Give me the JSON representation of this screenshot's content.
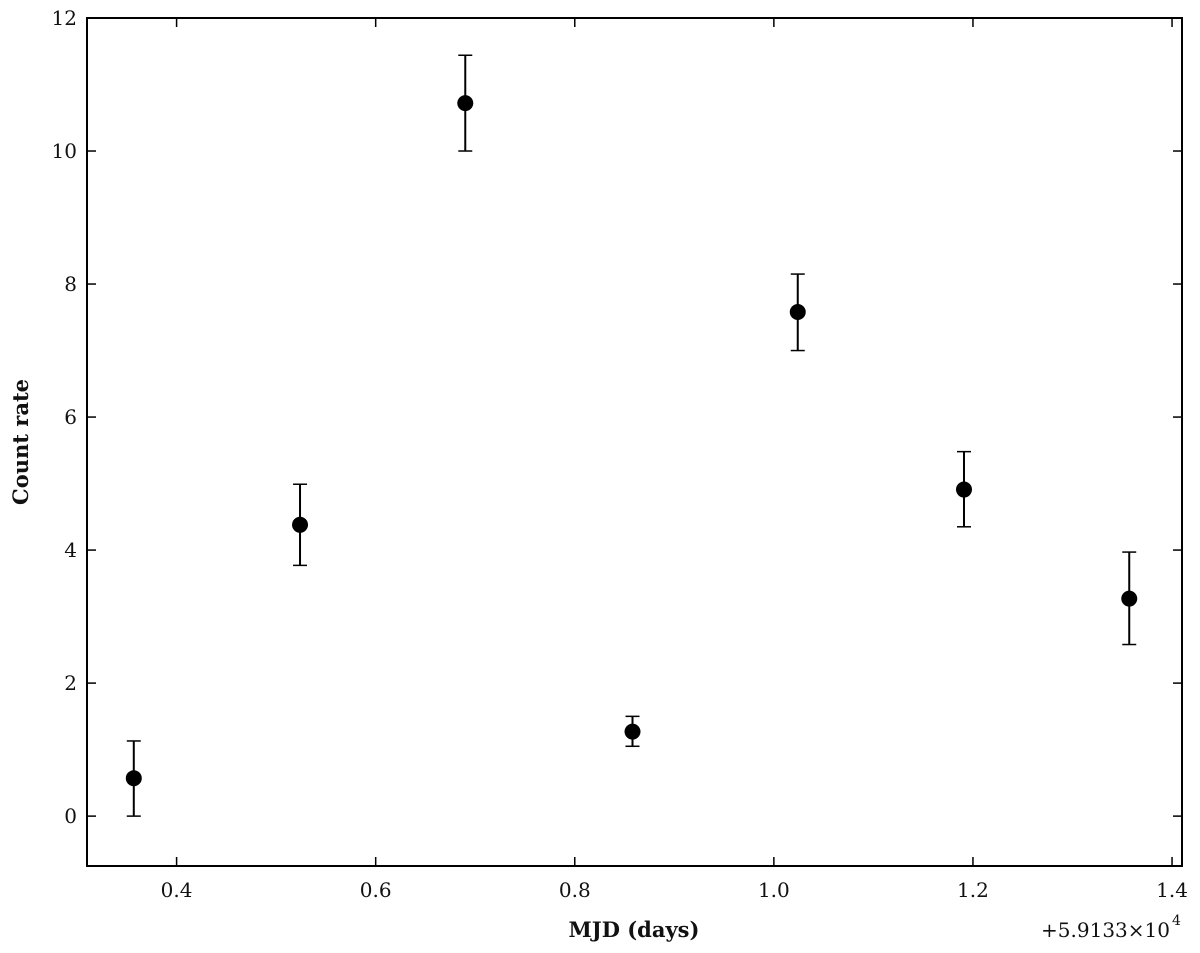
{
  "chart_data": {
    "type": "scatter",
    "title": "",
    "xlabel": "MJD (days)",
    "ylabel": "Count rate",
    "x_offset_label": "+5.9133×10",
    "x_offset_exponent": "4",
    "xlim": [
      0.31,
      1.41
    ],
    "ylim": [
      -0.75,
      12
    ],
    "x_ticks": [
      0.4,
      0.6,
      0.8,
      1.0,
      1.2,
      1.4
    ],
    "x_tick_labels": [
      "0.4",
      "0.6",
      "0.8",
      "1.0",
      "1.2",
      "1.4"
    ],
    "y_ticks": [
      0,
      2,
      4,
      6,
      8,
      10,
      12
    ],
    "y_tick_labels": [
      "0",
      "2",
      "4",
      "6",
      "8",
      "10",
      "12"
    ],
    "grid": false,
    "legend": false,
    "marker_color": "#000000",
    "series": [
      {
        "points": [
          {
            "x": 0.357,
            "y": 0.57,
            "y_low": 0.0,
            "y_high": 1.13
          },
          {
            "x": 0.524,
            "y": 4.38,
            "y_low": 3.77,
            "y_high": 4.99
          },
          {
            "x": 0.69,
            "y": 10.72,
            "y_low": 10.0,
            "y_high": 11.44
          },
          {
            "x": 0.858,
            "y": 1.27,
            "y_low": 1.05,
            "y_high": 1.5
          },
          {
            "x": 1.024,
            "y": 7.58,
            "y_low": 7.0,
            "y_high": 8.15
          },
          {
            "x": 1.191,
            "y": 4.91,
            "y_low": 4.35,
            "y_high": 5.48
          },
          {
            "x": 1.357,
            "y": 3.27,
            "y_low": 2.58,
            "y_high": 3.97
          }
        ]
      }
    ]
  }
}
